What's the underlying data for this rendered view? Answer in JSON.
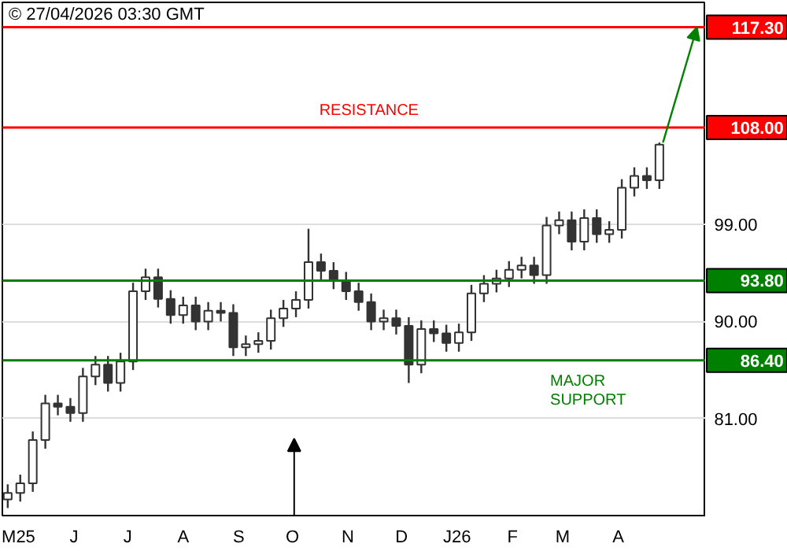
{
  "chart_data": {
    "type": "candlestick",
    "title": "© 27/04/2026 03:30 GMT",
    "x": [
      "2025-04-25",
      "2025-05-02",
      "2025-05-09",
      "2025-05-16",
      "2025-05-23",
      "2025-05-30",
      "2025-06-06",
      "2025-06-13",
      "2025-06-20",
      "2025-06-27",
      "2025-07-04",
      "2025-07-11",
      "2025-07-18",
      "2025-07-25",
      "2025-08-01",
      "2025-08-08",
      "2025-08-15",
      "2025-08-22",
      "2025-08-29",
      "2025-09-05",
      "2025-09-12",
      "2025-09-19",
      "2025-09-26",
      "2025-10-03",
      "2025-10-10",
      "2025-10-17",
      "2025-10-24",
      "2025-10-31",
      "2025-11-07",
      "2025-11-14",
      "2025-11-21",
      "2025-11-28",
      "2025-12-05",
      "2025-12-12",
      "2025-12-19",
      "2025-12-26",
      "2026-01-02",
      "2026-01-09",
      "2026-01-16",
      "2026-01-23",
      "2026-01-30",
      "2026-02-06",
      "2026-02-13",
      "2026-02-20",
      "2026-02-27",
      "2026-03-06",
      "2026-03-13",
      "2026-03-20",
      "2026-03-27",
      "2026-04-03",
      "2026-04-10",
      "2026-04-17",
      "2026-04-24"
    ],
    "ohlc": [
      [
        73.5,
        74.9,
        72.7,
        74.1
      ],
      [
        74.1,
        75.8,
        73.3,
        75.0
      ],
      [
        75.0,
        79.8,
        74.2,
        79.0
      ],
      [
        79.0,
        83.2,
        78.2,
        82.4
      ],
      [
        82.4,
        83.2,
        81.3,
        82.1
      ],
      [
        82.1,
        82.9,
        80.7,
        81.5
      ],
      [
        81.5,
        85.7,
        80.7,
        84.9
      ],
      [
        84.9,
        86.8,
        84.1,
        86.0
      ],
      [
        86.0,
        86.8,
        83.5,
        84.3
      ],
      [
        84.3,
        87.1,
        83.5,
        86.3
      ],
      [
        86.3,
        93.6,
        85.5,
        92.8
      ],
      [
        92.8,
        94.9,
        92.0,
        94.1
      ],
      [
        94.1,
        94.9,
        91.3,
        92.1
      ],
      [
        92.1,
        92.9,
        89.8,
        90.6
      ],
      [
        90.6,
        92.3,
        89.8,
        91.5
      ],
      [
        91.5,
        92.3,
        89.2,
        90.0
      ],
      [
        90.0,
        91.8,
        89.2,
        91.0
      ],
      [
        91.0,
        91.8,
        90.0,
        90.8
      ],
      [
        90.8,
        91.6,
        86.8,
        87.6
      ],
      [
        87.6,
        88.7,
        86.8,
        87.9
      ],
      [
        87.9,
        89.0,
        87.1,
        88.2
      ],
      [
        88.2,
        91.1,
        87.4,
        90.3
      ],
      [
        90.3,
        92.0,
        89.5,
        91.2
      ],
      [
        91.2,
        92.8,
        90.4,
        92.0
      ],
      [
        92.0,
        98.6,
        91.2,
        95.5
      ],
      [
        95.5,
        96.3,
        93.9,
        94.7
      ],
      [
        94.7,
        95.5,
        93.0,
        93.8
      ],
      [
        93.8,
        94.6,
        92.0,
        92.8
      ],
      [
        92.8,
        93.6,
        91.0,
        91.8
      ],
      [
        91.8,
        92.6,
        89.2,
        90.0
      ],
      [
        90.0,
        91.1,
        89.2,
        90.3
      ],
      [
        90.3,
        91.1,
        88.8,
        89.6
      ],
      [
        89.6,
        90.4,
        84.3,
        86.0
      ],
      [
        86.0,
        90.1,
        85.2,
        89.3
      ],
      [
        89.3,
        90.1,
        88.1,
        88.9
      ],
      [
        88.9,
        89.7,
        87.2,
        88.0
      ],
      [
        88.0,
        89.8,
        87.2,
        89.0
      ],
      [
        89.0,
        93.4,
        88.2,
        92.6
      ],
      [
        92.6,
        94.3,
        91.8,
        93.5
      ],
      [
        93.5,
        94.8,
        92.7,
        94.0
      ],
      [
        94.0,
        95.6,
        93.2,
        94.8
      ],
      [
        94.8,
        96.0,
        94.0,
        95.2
      ],
      [
        95.2,
        96.0,
        93.5,
        94.3
      ],
      [
        94.3,
        99.7,
        93.5,
        98.9
      ],
      [
        98.9,
        100.2,
        98.1,
        99.4
      ],
      [
        99.4,
        100.2,
        96.6,
        97.4
      ],
      [
        97.4,
        100.4,
        96.6,
        99.6
      ],
      [
        99.6,
        100.4,
        97.3,
        98.1
      ],
      [
        98.1,
        99.3,
        97.3,
        98.5
      ],
      [
        98.5,
        103.2,
        97.7,
        102.4
      ],
      [
        102.4,
        104.3,
        101.6,
        103.5
      ],
      [
        103.5,
        104.3,
        102.3,
        103.1
      ],
      [
        103.1,
        106.6,
        102.3,
        106.4
      ]
    ],
    "color": "#333333",
    "xlim": [
      "2025-04-22",
      "2026-05-20"
    ],
    "xticks": [
      {
        "value": "2025-05-01",
        "label": "M25"
      },
      {
        "value": "2025-06-01",
        "label": "J"
      },
      {
        "value": "2025-07-01",
        "label": "J"
      },
      {
        "value": "2025-08-01",
        "label": "A"
      },
      {
        "value": "2025-09-01",
        "label": "S"
      },
      {
        "value": "2025-10-01",
        "label": "O"
      },
      {
        "value": "2025-11-01",
        "label": "N"
      },
      {
        "value": "2025-12-01",
        "label": "D"
      },
      {
        "value": "2026-01-01",
        "label": "J26"
      },
      {
        "value": "2026-02-01",
        "label": "F"
      },
      {
        "value": "2026-03-01",
        "label": "M"
      },
      {
        "value": "2026-04-01",
        "label": "A"
      }
    ],
    "ylim": [
      72,
      119.6
    ],
    "yticks": [
      {
        "value": 81,
        "label": "81.00"
      },
      {
        "value": 90,
        "label": "90.00"
      },
      {
        "value": 99,
        "label": "99.00"
      }
    ],
    "grid": "y",
    "ref_lines": [
      {
        "axis": "y",
        "value": 117.3,
        "label": "117.30",
        "color": "#ff0000"
      },
      {
        "axis": "y",
        "value": 108,
        "label": "108.00",
        "color": "#ff0000"
      },
      {
        "axis": "y",
        "value": 93.8,
        "label": "93.80",
        "color": "#008000"
      },
      {
        "axis": "y",
        "value": 86.4,
        "label": "86.40",
        "color": "#008000"
      }
    ],
    "annotations": [
      {
        "text": "RESISTANCE",
        "x": "2025-10-16",
        "y": 108
      },
      {
        "text": "MAJOR\nSUPPORT",
        "x": "2026-02-22",
        "y": 86.4
      }
    ]
  }
}
